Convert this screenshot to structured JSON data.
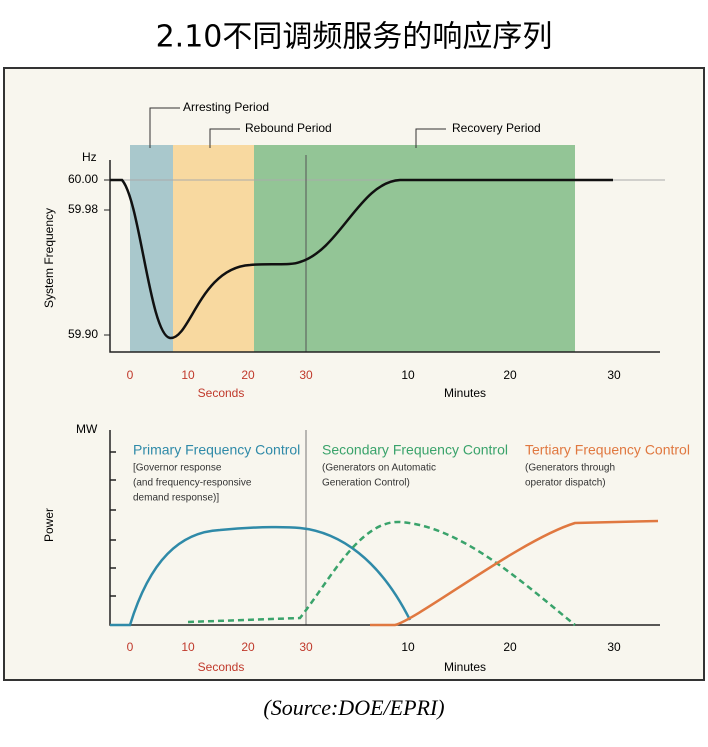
{
  "header": {
    "title": "2.10不同调频服务的响应序列"
  },
  "frequency_panel": {
    "unit": "Hz",
    "y_axis_label": "System Frequency",
    "y_ticks": [
      "60.00",
      "59.98",
      "59.90"
    ],
    "periods": [
      "Arresting Period",
      "Rebound Period",
      "Recovery Period"
    ],
    "x_ticks_seconds": [
      "0",
      "10",
      "20",
      "30"
    ],
    "x_ticks_minutes": [
      "10",
      "20",
      "30"
    ],
    "seconds_label": "Seconds",
    "minutes_label": "Minutes"
  },
  "power_panel": {
    "unit": "MW",
    "y_axis_label": "Power",
    "controls": [
      {
        "name": "Primary Frequency Control",
        "notes": [
          "[Governor response",
          "(and frequency-responsive",
          "demand response)]"
        ]
      },
      {
        "name": "Secondary Frequency Control",
        "notes": [
          "(Generators on Automatic",
          "Generation Control)"
        ]
      },
      {
        "name": "Tertiary Frequency Control",
        "notes": [
          "(Generators through",
          "operator dispatch)"
        ]
      }
    ],
    "x_ticks_seconds": [
      "0",
      "10",
      "20",
      "30"
    ],
    "x_ticks_minutes": [
      "10",
      "20",
      "30"
    ],
    "seconds_label": "Seconds",
    "minutes_label": "Minutes"
  },
  "footer": {
    "source": "(Source:DOE/EPRI)"
  }
}
